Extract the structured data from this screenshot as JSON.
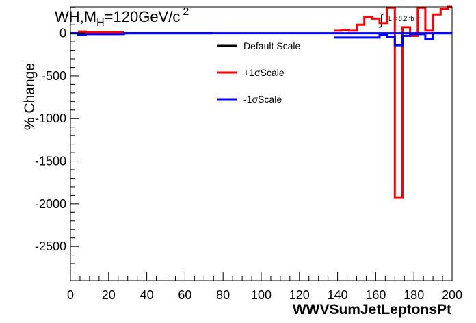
{
  "header": {
    "title_main": "WH,M",
    "title_sub": "H",
    "title_rest": "=120GeV/c",
    "title_sup": "2",
    "lumi_integral": "∫",
    "lumi_text": "L = 8.2 fb",
    "lumi_sup": "-1"
  },
  "chart_data": {
    "type": "line",
    "xlabel": "WWVSumJetLeptonsPt",
    "ylabel": "% Change",
    "xlim": [
      0,
      200
    ],
    "ylim": [
      -2900,
      310
    ],
    "x_ticks": [
      0,
      20,
      40,
      60,
      80,
      100,
      120,
      140,
      160,
      180,
      200
    ],
    "y_ticks": [
      0,
      -500,
      -1000,
      -1500,
      -2000,
      -2500
    ],
    "grid": false,
    "legend_position": "top-center",
    "series": [
      {
        "name": "Default Scale",
        "color": "#000000",
        "segments": [
          {
            "x": [
              0,
              75
            ],
            "y": [
              0,
              0
            ]
          }
        ]
      },
      {
        "name": "+1σScale",
        "color": "#ff0000",
        "segments": [
          {
            "x": [
              4,
              8,
              8,
              28
            ],
            "y": [
              20,
              20,
              10,
              10
            ]
          },
          {
            "x": [
              138,
              142,
              142,
              146,
              146,
              150,
              150,
              154,
              154,
              158,
              158,
              162,
              162,
              166,
              166,
              170,
              170,
              174,
              174,
              178,
              178,
              182,
              182,
              186,
              186,
              190,
              190,
              194,
              194,
              198,
              198,
              200
            ],
            "y": [
              30,
              30,
              40,
              40,
              30,
              30,
              100,
              100,
              190,
              190,
              170,
              170,
              120,
              120,
              300,
              300,
              -1930,
              -1930,
              70,
              70,
              -30,
              -30,
              300,
              300,
              30,
              30,
              220,
              220,
              290,
              290,
              310,
              310
            ]
          }
        ]
      },
      {
        "name": "-1σScale",
        "color": "#0000ff",
        "segments": [
          {
            "x": [
              0,
              4,
              4,
              8,
              8,
              28,
              28,
              200
            ],
            "y": [
              0,
              0,
              -20,
              -20,
              -10,
              -10,
              0,
              0
            ]
          },
          {
            "x": [
              138,
              162,
              162,
              166,
              166,
              170,
              170,
              174,
              174,
              178,
              178,
              182,
              182,
              186,
              186,
              190,
              190,
              200
            ],
            "y": [
              -50,
              -50,
              -20,
              -20,
              -40,
              -40,
              -140,
              -140,
              -30,
              -30,
              -10,
              -10,
              -10,
              -10,
              -70,
              -70,
              0,
              0
            ]
          }
        ]
      }
    ]
  }
}
